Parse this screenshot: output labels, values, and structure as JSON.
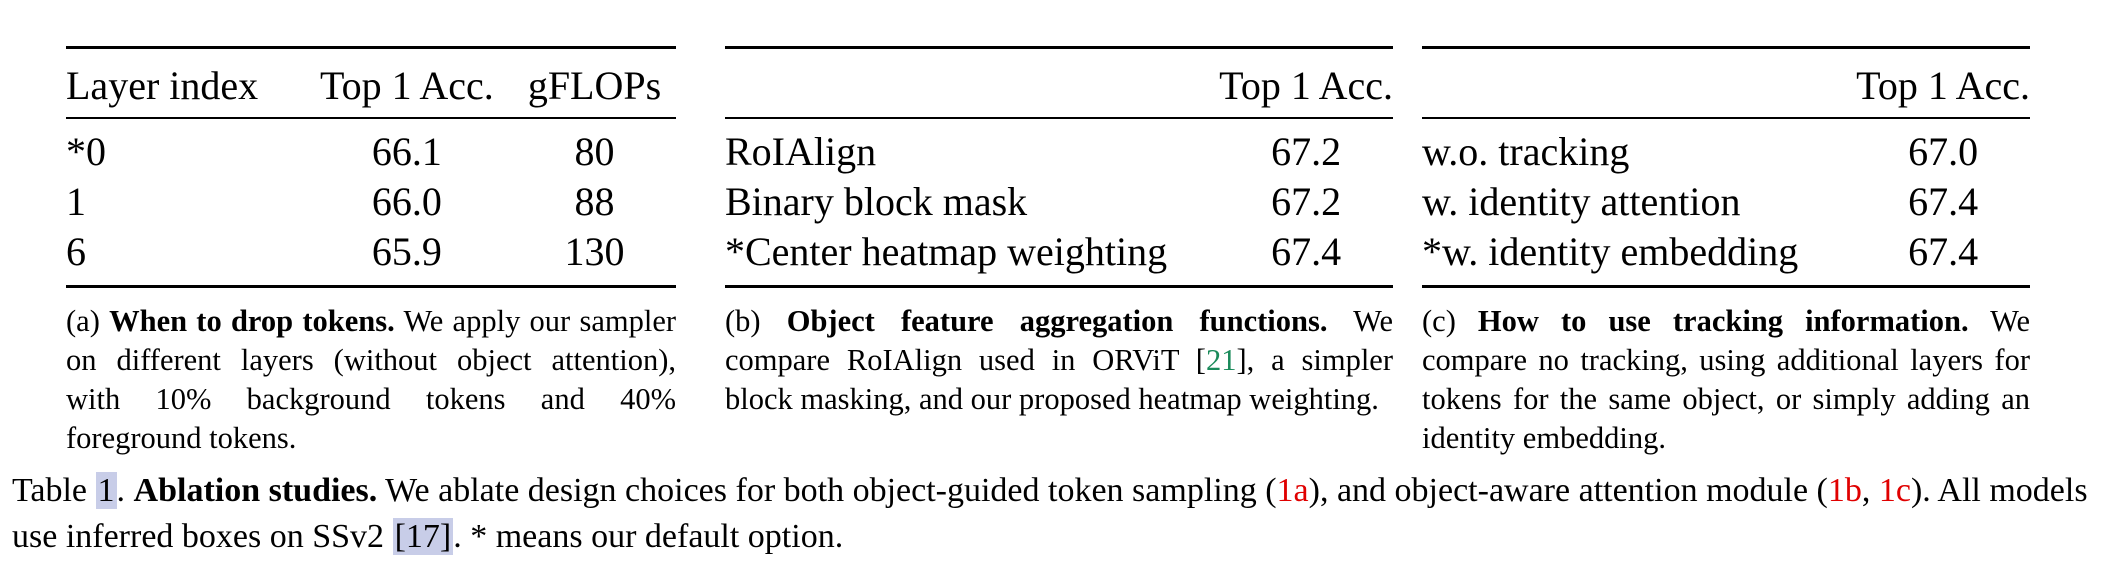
{
  "table_a": {
    "headers": [
      "Layer index",
      "Top 1 Acc.",
      "gFLOPs"
    ],
    "rows": [
      [
        "*0",
        "66.1",
        "80"
      ],
      [
        "1",
        "66.0",
        "88"
      ],
      [
        "6",
        "65.9",
        "130"
      ]
    ],
    "caption": {
      "label": "(a)",
      "bold": "When to drop tokens.",
      "text": "We apply our sampler on different layers (without object attention), with 10% background tokens and 40% foreground tokens."
    }
  },
  "table_b": {
    "headers": [
      "",
      "Top 1 Acc."
    ],
    "rows": [
      [
        "RoIAlign",
        "67.2"
      ],
      [
        "Binary block mask",
        "67.2"
      ],
      [
        "*Center heatmap weighting",
        "67.4"
      ]
    ],
    "caption": {
      "label": "(b)",
      "bold": "Object feature aggregation functions.",
      "text_before": "We compare RoIAlign used in ORViT [",
      "ref": "21",
      "text_after": "], a simpler block masking, and our proposed heatmap weighting."
    }
  },
  "table_c": {
    "headers": [
      "",
      "Top 1 Acc."
    ],
    "rows": [
      [
        "w.o. tracking",
        "67.0"
      ],
      [
        "w. identity attention",
        "67.4"
      ],
      [
        "*w. identity embedding",
        "67.4"
      ]
    ],
    "caption": {
      "label": "(c)",
      "bold": "How to use tracking information.",
      "text": "We compare no tracking, using additional layers for tokens for the same object, or simply adding an identity embedding."
    }
  },
  "main_caption": {
    "prefix": "Table",
    "number": "1",
    "sep": ".",
    "bold": "Ablation studies.",
    "text1": "We ablate design choices for both object-guided token sampling (",
    "ref_1a": "1a",
    "text2": "), and object-aware attention module (",
    "ref_1b": "1b",
    "comma": ",",
    "ref_1c": "1c",
    "text3": "). All models use inferred boxes on SSv2",
    "ref_17": "[17]",
    "text4": ". * means our default option."
  }
}
